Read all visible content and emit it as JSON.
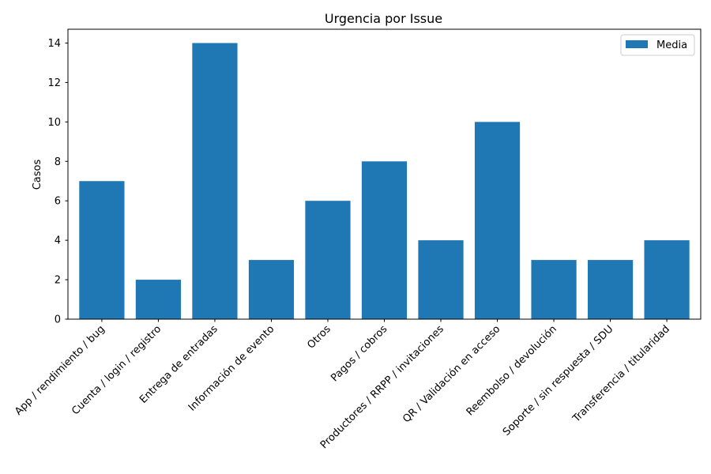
{
  "chart_data": {
    "type": "bar",
    "title": "Urgencia por Issue",
    "xlabel": "",
    "ylabel": "Casos",
    "categories": [
      "App / rendimiento / bug",
      "Cuenta / login / registro",
      "Entrega de entradas",
      "Información de evento",
      "Otros",
      "Pagos / cobros",
      "Productores / RRPP / invitaciones",
      "QR / Validación en acceso",
      "Reembolso / devolución",
      "Soporte / sin respuesta / SDU",
      "Transferencia / titularidad"
    ],
    "series": [
      {
        "name": "Media",
        "color": "#1f77b4",
        "values": [
          7,
          2,
          14,
          3,
          6,
          8,
          4,
          10,
          3,
          3,
          4
        ]
      }
    ],
    "ylim": [
      0,
      14.7
    ],
    "yticks": [
      0,
      2,
      4,
      6,
      8,
      10,
      12,
      14
    ],
    "grid": false,
    "legend": "top-right"
  }
}
